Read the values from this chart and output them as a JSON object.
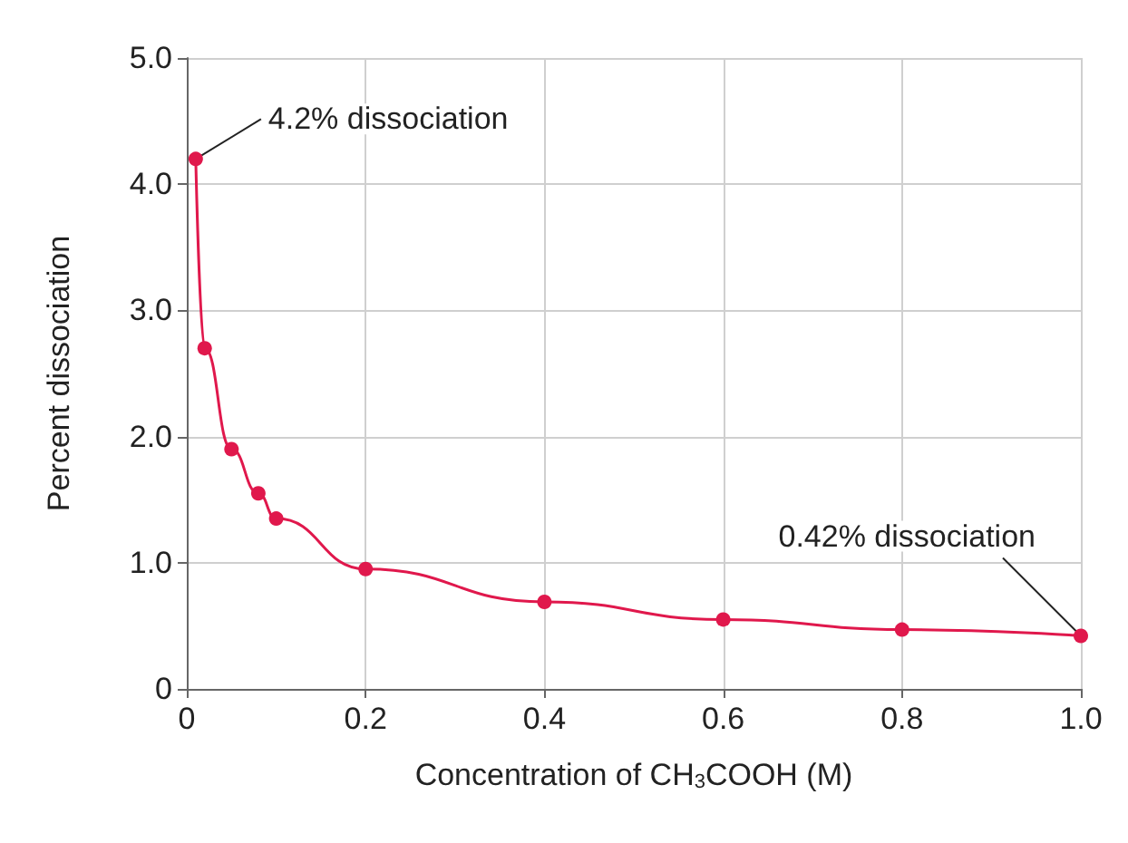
{
  "chart_data": {
    "type": "line",
    "xlabel": "Concentration of CH$_{3}$COOH (M)",
    "ylabel": "Percent dissociation",
    "x": [
      0.01,
      0.02,
      0.05,
      0.08,
      0.1,
      0.2,
      0.4,
      0.6,
      0.8,
      1.0
    ],
    "series": [
      {
        "color": "#e0184c",
        "values": [
          4.2,
          2.7,
          1.9,
          1.55,
          1.35,
          0.95,
          0.69,
          0.55,
          0.47,
          0.42
        ]
      }
    ],
    "xlim": [
      0,
      1.0
    ],
    "xticks": [
      0,
      {
        "value": 0.2,
        "label": "0.2"
      },
      {
        "value": 0.4,
        "label": "0.4"
      },
      {
        "value": 0.6,
        "label": "0.6"
      },
      {
        "value": 0.8,
        "label": "0.8"
      },
      {
        "value": 1.0,
        "label": "1.0"
      }
    ],
    "ylim": [
      0,
      5.0
    ],
    "yticks": [
      0,
      {
        "value": 1,
        "label": "1.0"
      },
      {
        "value": 2,
        "label": "2.0"
      },
      {
        "value": 3,
        "label": "3.0"
      },
      {
        "value": 4,
        "label": "4.0"
      },
      {
        "value": 5,
        "label": "5.0"
      }
    ],
    "annotations": [
      {
        "text": "4.2% dissociation",
        "x": 0.01,
        "y": 4.2
      },
      {
        "text": "0.42% dissociation",
        "x": 1.0,
        "y": 0.42
      }
    ],
    "grid": true,
    "marker": "circle",
    "line_style": "solid"
  }
}
